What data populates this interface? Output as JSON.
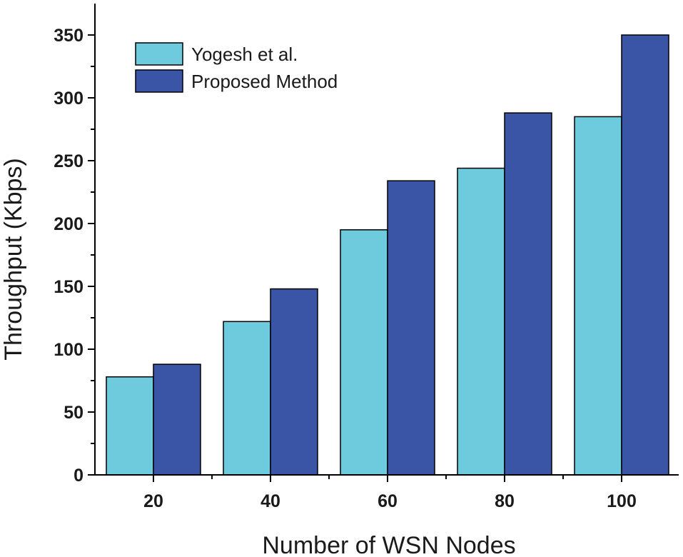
{
  "chart_data": {
    "type": "bar",
    "categories": [
      "20",
      "40",
      "60",
      "80",
      "100"
    ],
    "series": [
      {
        "name": "Yogesh et al.",
        "color": "#6ecbdd",
        "values": [
          78,
          122,
          195,
          244,
          285
        ]
      },
      {
        "name": "Proposed Method",
        "color": "#3a55a6",
        "values": [
          88,
          148,
          234,
          288,
          350
        ]
      }
    ],
    "xlabel": "Number of WSN Nodes",
    "ylabel": "Throughput (Kbps)",
    "ylim": [
      0,
      375
    ],
    "yticks": [
      0,
      50,
      100,
      150,
      200,
      250,
      300,
      350
    ],
    "grid": false,
    "legend_position": "top-left"
  }
}
